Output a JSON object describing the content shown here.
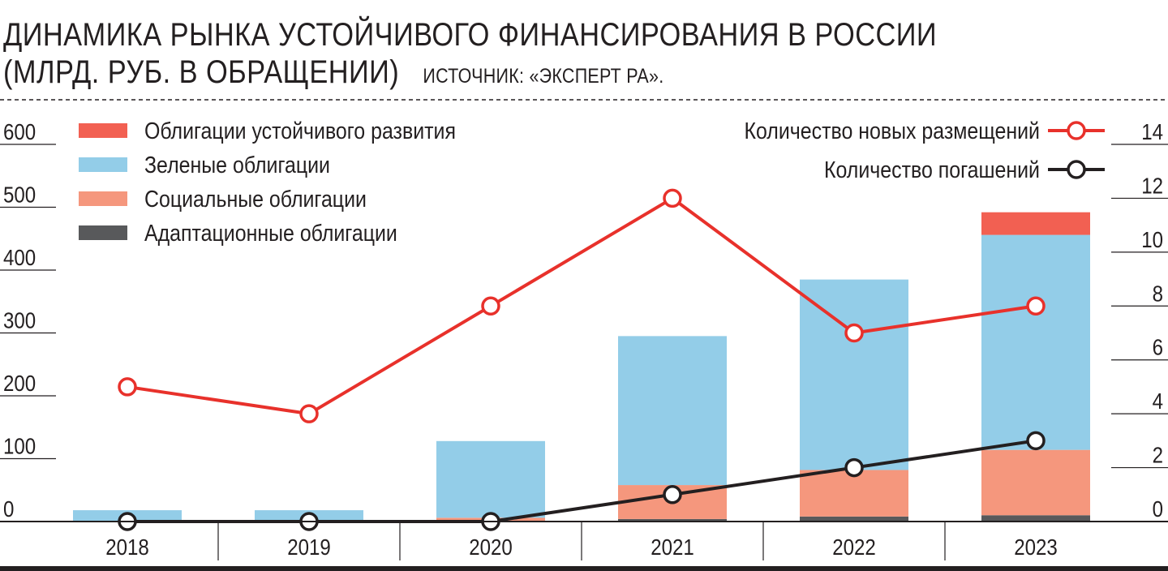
{
  "title_line1": "ДИНАМИКА РЫНКА УСТОЙЧИВОГО ФИНАНСИРОВАНИЯ В РОССИИ",
  "title_line2": "(МЛРД. РУБ. В ОБРАЩЕНИИ)",
  "source": "ИСТОЧНИК: «ЭКСПЕРТ РА».",
  "colors": {
    "sustainability": "#f26052",
    "green": "#93cde8",
    "social": "#f5977d",
    "adaptation": "#58595b",
    "new_issues_line": "#e8312b",
    "maturities_line": "#231f20"
  },
  "chart_data": {
    "type": "bar",
    "stacked": true,
    "categories": [
      "2018",
      "2019",
      "2020",
      "2021",
      "2022",
      "2023"
    ],
    "series": [
      {
        "name": "Адаптационные облигации",
        "key": "adaptation",
        "values": [
          0,
          0,
          0,
          4,
          8,
          10
        ]
      },
      {
        "name": "Социальные облигации",
        "key": "social",
        "values": [
          0,
          0,
          6,
          54,
          74,
          104
        ]
      },
      {
        "name": "Зеленые облигации",
        "key": "green",
        "values": [
          18,
          18,
          122,
          237,
          303,
          342
        ]
      },
      {
        "name": "Облигации устойчивого развития",
        "key": "sustainability",
        "values": [
          0,
          0,
          0,
          0,
          0,
          36
        ]
      }
    ],
    "legend_order": [
      "sustainability",
      "green",
      "social",
      "adaptation"
    ],
    "legend_position": "top-left",
    "ylim": [
      0,
      600
    ],
    "yticks": [
      0,
      100,
      200,
      300,
      400,
      500,
      600
    ],
    "lines": {
      "axis": "right",
      "ylim": [
        0,
        14
      ],
      "yticks": [
        0,
        2,
        4,
        6,
        8,
        10,
        12,
        14
      ],
      "legend_position": "top-right",
      "series": [
        {
          "name": "Количество новых размещений",
          "key": "new_issues_line",
          "values": [
            5,
            4,
            8,
            12,
            7,
            8
          ]
        },
        {
          "name": "Количество погашений",
          "key": "maturities_line",
          "values": [
            0,
            0,
            0,
            1,
            2,
            3
          ]
        }
      ]
    }
  }
}
